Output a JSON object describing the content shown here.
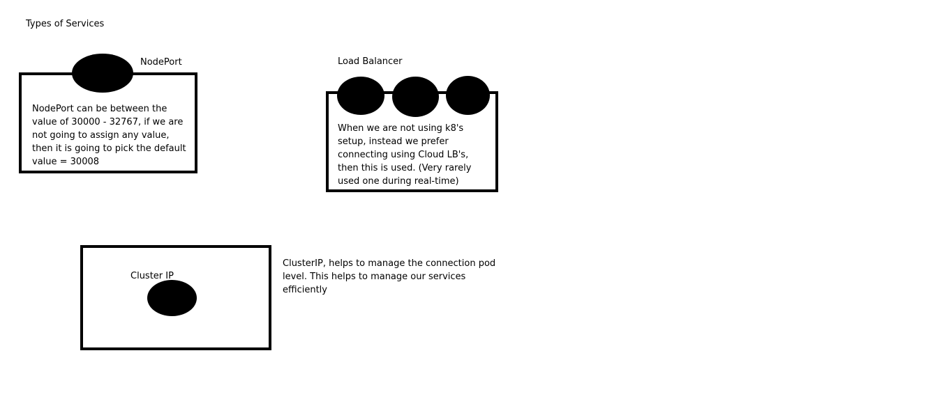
{
  "title": "Types of Services",
  "nodeport": {
    "label": "NodePort",
    "description": "NodePort can be between the\nvalue of 30000 - 32767, if we are\nnot going to assign any value,\nthen it is going to pick the default\nvalue = 30008"
  },
  "load_balancer": {
    "label": "Load Balancer",
    "description": "When we are not using k8's\nsetup, instead we prefer\nconnecting using Cloud LB's,\nthen this is used. (Very rarely\nused one during real-time)"
  },
  "cluster_ip": {
    "label": "Cluster IP",
    "description": "ClusterIP, helps to manage the connection pod\nlevel. This helps to manage our services\nefficiently"
  }
}
